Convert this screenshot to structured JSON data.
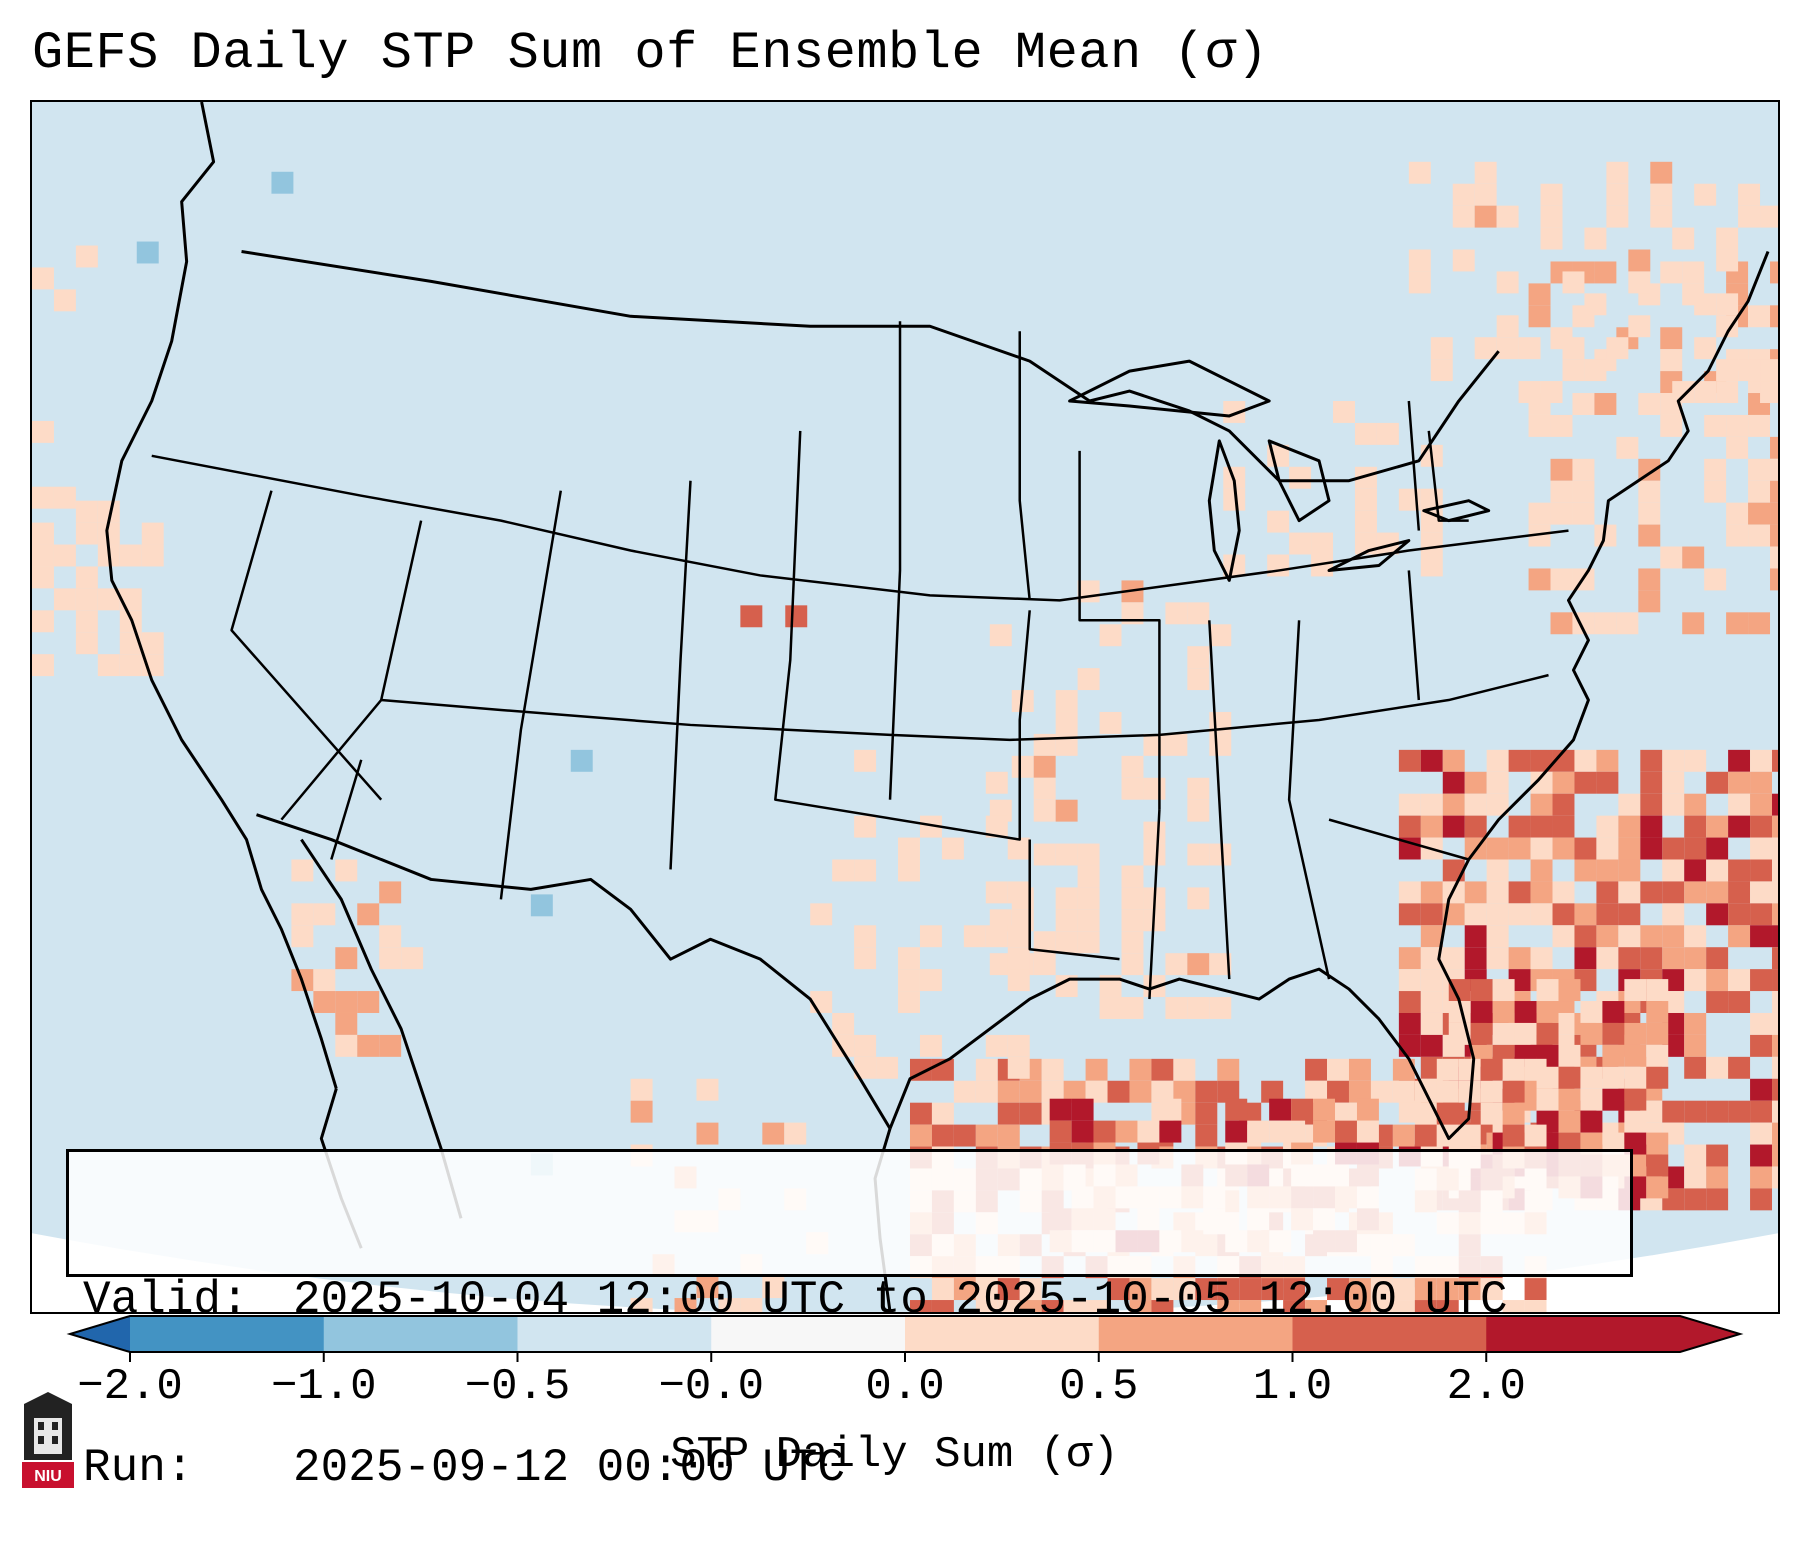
{
  "title": "GEFS Daily STP Sum of Ensemble Mean (σ)",
  "info": {
    "valid_label": "Valid:",
    "valid_value": "2025-10-04 12:00 UTC to 2025-10-05 12:00 UTC",
    "run_label": "Run:",
    "run_value": "2025-09-12 00:00 UTC"
  },
  "colorbar": {
    "label": "STP Daily Sum (σ)",
    "ticks": [
      "−2.0",
      "−1.0",
      "−0.5",
      "−0.0",
      "0.0",
      "0.5",
      "1.0",
      "2.0"
    ],
    "colors": [
      "#4393c3",
      "#92c5de",
      "#d1e5f0",
      "#f7f7f7",
      "#fddbc7",
      "#f4a582",
      "#d6604d",
      "#b2182b"
    ],
    "extend_low_color": "#2166ac",
    "extend_high_color": "#b2182b"
  },
  "map": {
    "background_color": "#d1e5f0",
    "outside_domain_color": "#ffffff",
    "region": "Contiguous United States with Gulf of Mexico, western Atlantic, northern Mexico and southern Canada",
    "highlighted_areas": [
      {
        "region": "Western Atlantic off Carolinas",
        "level": "0.5 to 2.0"
      },
      {
        "region": "Northern Gulf of Mexico",
        "level": "0.5 to 2.0"
      },
      {
        "region": "New England / Maritimes",
        "level": "0.0 to 1.0"
      },
      {
        "region": "Southern Plains / Mid-South",
        "level": "0.0 to 0.5"
      }
    ]
  },
  "logo": {
    "text": "NIU"
  }
}
